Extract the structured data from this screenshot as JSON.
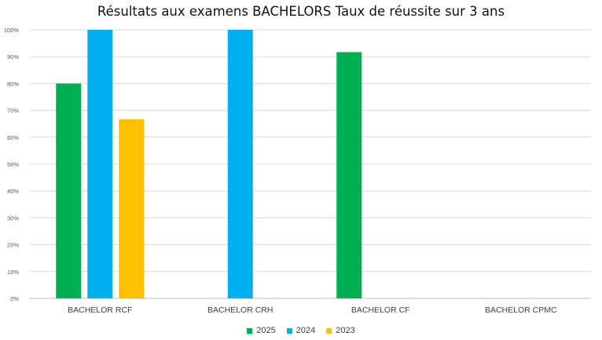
{
  "chart_data": {
    "type": "bar",
    "title": "Résultats aux examens BACHELORS Taux de réussite sur 3 ans",
    "categories": [
      "BACHELOR RCF",
      "BACHELOR CRH",
      "BACHELOR CF",
      "BACHELOR CPMC"
    ],
    "series": [
      {
        "name": "2025",
        "color": "#00b050",
        "values": [
          0.8,
          null,
          0.917,
          null
        ]
      },
      {
        "name": "2024",
        "color": "#00b0f0",
        "values": [
          1.0,
          1.0,
          null,
          null
        ]
      },
      {
        "name": "2023",
        "color": "#ffc000",
        "values": [
          0.667,
          null,
          null,
          null
        ]
      }
    ],
    "ylim": [
      0,
      1
    ],
    "yticks": [
      "0%",
      "10%",
      "20%",
      "30%",
      "40%",
      "50%",
      "60%",
      "70%",
      "80%",
      "90%",
      "100%"
    ],
    "grid": true,
    "legend": "bottom"
  }
}
